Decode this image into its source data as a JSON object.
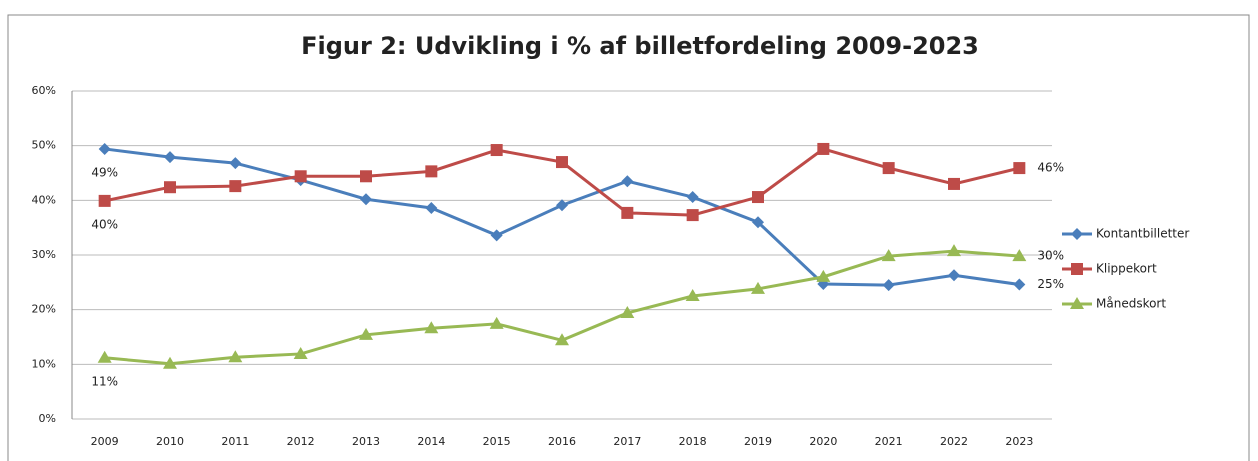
{
  "chart_data": {
    "type": "line",
    "title": "Figur 2: Udvikling i % af billetfordeling 2009-2023",
    "categories": [
      "2009",
      "2010",
      "2011",
      "2012",
      "2013",
      "2014",
      "2015",
      "2016",
      "2017",
      "2018",
      "2019",
      "2020",
      "2021",
      "2022",
      "2023"
    ],
    "series": [
      {
        "name": "Kontantbilletter",
        "color": "#4a7ebb",
        "marker": "diamond",
        "values": [
          49.4,
          47.9,
          46.8,
          43.7,
          40.2,
          38.6,
          33.6,
          39.1,
          43.5,
          40.6,
          36.0,
          24.7,
          24.5,
          26.3,
          24.6
        ],
        "value_labels": [
          "49%",
          null,
          null,
          null,
          null,
          null,
          null,
          null,
          null,
          null,
          null,
          null,
          null,
          null,
          "25%"
        ]
      },
      {
        "name": "Klippekort",
        "color": "#be4b48",
        "marker": "square",
        "values": [
          39.9,
          42.4,
          42.6,
          44.4,
          44.4,
          45.3,
          49.2,
          47.0,
          37.7,
          37.3,
          40.6,
          49.4,
          45.9,
          43.0,
          45.9
        ],
        "value_labels": [
          "40%",
          null,
          null,
          null,
          null,
          null,
          null,
          null,
          null,
          null,
          null,
          null,
          null,
          null,
          "46%"
        ]
      },
      {
        "name": "Månedskort",
        "color": "#98b954",
        "marker": "triangle",
        "values": [
          11.2,
          10.1,
          11.3,
          11.9,
          15.4,
          16.6,
          17.4,
          14.4,
          19.4,
          22.5,
          23.8,
          26.0,
          29.8,
          30.7,
          29.8
        ],
        "value_labels": [
          "11%",
          null,
          null,
          null,
          null,
          null,
          null,
          null,
          null,
          null,
          null,
          null,
          null,
          null,
          "30%"
        ]
      }
    ],
    "ylim": [
      0,
      60
    ],
    "yticks": [
      {
        "value": 0,
        "label": "0%"
      },
      {
        "value": 10,
        "label": "10%"
      },
      {
        "value": 20,
        "label": "20%"
      },
      {
        "value": 30,
        "label": "30%"
      },
      {
        "value": 40,
        "label": "40%"
      },
      {
        "value": 50,
        "label": "50%"
      },
      {
        "value": 60,
        "label": "60%"
      }
    ],
    "grid": true,
    "legend": "right"
  }
}
